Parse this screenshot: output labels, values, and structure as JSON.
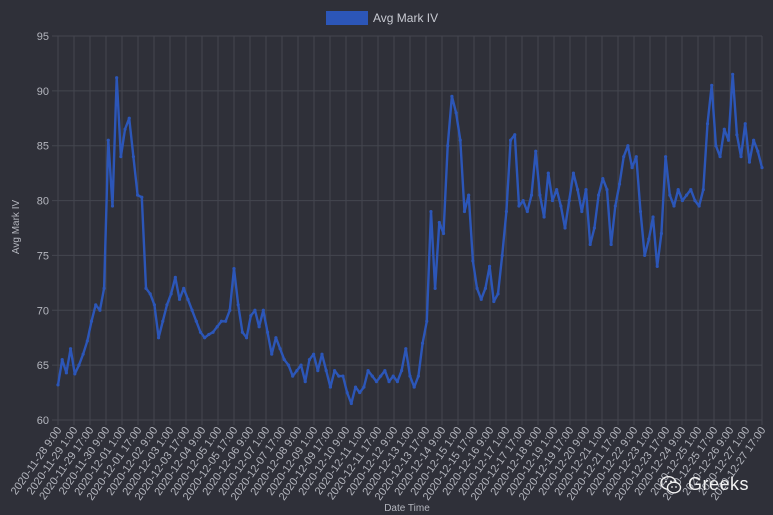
{
  "chart_data": {
    "type": "line",
    "legend": {
      "label": "Avg Mark IV",
      "position": "top",
      "color": "#2c56b8"
    },
    "xlabel": "Date Time",
    "ylabel": "Avg Mark IV",
    "ylim": [
      60,
      95
    ],
    "yticks": [
      60,
      65,
      70,
      75,
      80,
      85,
      90,
      95
    ],
    "grid": true,
    "x_tick_labels": [
      "2020-11-28 9:00",
      "2020-11-29 1:00",
      "2020-11-29 17:00",
      "2020-11-30 9:00",
      "2020-12-01 1:00",
      "2020-12-01 17:00",
      "2020-12-02 9:00",
      "2020-12-03 1:00",
      "2020-12-03 17:00",
      "2020-12-04 9:00",
      "2020-12-05 1:00",
      "2020-12-05 17:00",
      "2020-12-06 9:00",
      "2020-12-07 1:00",
      "2020-12-07 17:00",
      "2020-12-08 9:00",
      "2020-12-09 1:00",
      "2020-12-09 17:00",
      "2020-12-10 9:00",
      "2020-12-11 1:00",
      "2020-12-11 17:00",
      "2020-12-12 9:00",
      "2020-12-13 1:00",
      "2020-12-13 17:00",
      "2020-12-14 9:00",
      "2020-12-15 1:00",
      "2020-12-15 17:00",
      "2020-12-16 9:00",
      "2020-12-17 1:00",
      "2020-12-17 17:00",
      "2020-12-18 9:00",
      "2020-12-19 1:00",
      "2020-12-19 17:00",
      "2020-12-20 9:00",
      "2020-12-21 1:00",
      "2020-12-21 17:00",
      "2020-12-22 9:00",
      "2020-12-23 1:00",
      "2020-12-23 17:00",
      "2020-12-24 9:00",
      "2020-12-25 1:00",
      "2020-12-25 17:00",
      "2020-12-26 9:00",
      "2020-12-27 1:00",
      "2020-12-27 17:00"
    ],
    "series": [
      {
        "name": "Avg Mark IV",
        "color": "#2c56b8",
        "values": [
          63.2,
          65.5,
          64.3,
          66.5,
          64.2,
          65.0,
          66.0,
          67.2,
          69.0,
          70.5,
          70.0,
          72.0,
          85.5,
          79.5,
          91.2,
          84.0,
          86.5,
          87.5,
          84.0,
          80.5,
          80.3,
          72.0,
          71.5,
          70.5,
          67.5,
          69.0,
          70.5,
          71.5,
          73.0,
          71.0,
          72.0,
          71.0,
          70.0,
          69.0,
          68.0,
          67.5,
          67.8,
          68.0,
          68.5,
          69.0,
          69.0,
          70.0,
          73.8,
          70.5,
          68.0,
          67.5,
          69.5,
          70.0,
          68.5,
          70.0,
          68.0,
          66.0,
          67.5,
          66.5,
          65.5,
          65.0,
          64.0,
          64.5,
          65.0,
          63.5,
          65.5,
          66.0,
          64.5,
          66.0,
          64.5,
          63.0,
          64.5,
          64.0,
          64.0,
          62.5,
          61.5,
          63.0,
          62.5,
          63.0,
          64.5,
          64.0,
          63.5,
          64.0,
          64.5,
          63.5,
          64.0,
          63.5,
          64.5,
          66.5,
          64.0,
          63.0,
          64.0,
          67.0,
          69.0,
          79.0,
          72.0,
          78.0,
          77.0,
          85.0,
          89.5,
          88.0,
          85.5,
          79.0,
          80.5,
          74.5,
          72.0,
          71.0,
          72.0,
          74.0,
          70.8,
          71.5,
          75.0,
          79.0,
          85.5,
          86.0,
          79.5,
          80.0,
          79.0,
          80.5,
          84.5,
          80.5,
          78.5,
          82.5,
          80.0,
          81.0,
          79.5,
          77.5,
          80.0,
          82.5,
          81.0,
          79.0,
          81.0,
          76.0,
          77.5,
          80.5,
          82.0,
          81.0,
          76.0,
          79.5,
          81.5,
          84.0,
          85.0,
          83.0,
          84.0,
          79.0,
          75.0,
          76.5,
          78.5,
          74.0,
          77.0,
          84.0,
          80.5,
          79.5,
          81.0,
          80.0,
          80.5,
          81.0,
          80.0,
          79.5,
          81.0,
          87.0,
          90.5,
          85.0,
          84.0,
          86.5,
          85.5,
          91.5,
          86.0,
          84.0,
          87.0,
          83.5,
          85.5,
          84.5,
          83.0
        ]
      }
    ]
  },
  "watermark": {
    "text": "Greeks"
  }
}
